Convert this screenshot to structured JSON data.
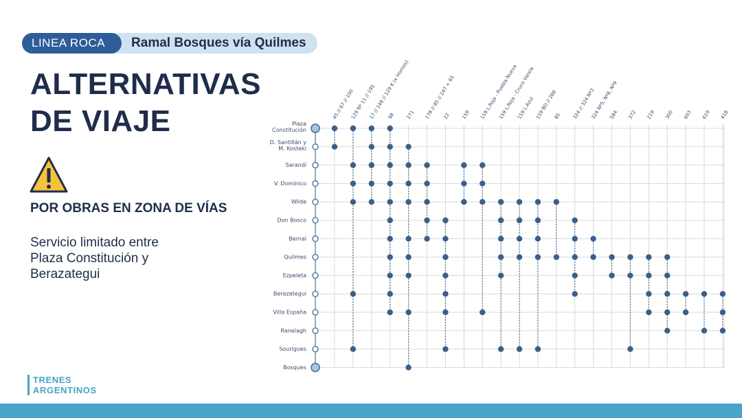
{
  "header": {
    "line": "LINEA ROCA",
    "branch": "Ramal Bosques vía Quilmes"
  },
  "title": {
    "line1": "ALTERNATIVAS",
    "line2": "DE VIAJE"
  },
  "warning": {
    "icon": "warning-triangle-icon",
    "heading": "POR OBRAS EN ZONA DE VÍAS"
  },
  "description": {
    "line1": "Servicio limitado entre",
    "line2": "Plaza Constitución y",
    "line3": "Berazategui"
  },
  "brand": {
    "line1": "TRENES",
    "line2": "ARGENTINOS"
  },
  "colors": {
    "dark_blue": "#1f2d4a",
    "line_blue": "#2e5d99",
    "light_blue": "#cfe2f1",
    "accent": "#4aa3c8",
    "dot": "#3b5f8a",
    "warning_yellow": "#f5c33b"
  },
  "chart_data": {
    "type": "table",
    "stations": [
      [
        "Plaza",
        "Constitución"
      ],
      [
        "D. Santillán y",
        "M. Kosteki"
      ],
      [
        "Sarandí"
      ],
      [
        "V. Domínico"
      ],
      [
        "Wilde"
      ],
      [
        "Don Bosco"
      ],
      [
        "Bernal"
      ],
      [
        "Quilmes"
      ],
      [
        "Ezpeleta"
      ],
      [
        "Berazategui"
      ],
      [
        "Villa España"
      ],
      [
        "Ranelagh"
      ],
      [
        "Sourigues"
      ],
      [
        "Bosques"
      ]
    ],
    "lines": [
      "45 // 67 // 100",
      "129 Nº 11 // 195",
      "17 // 148 // 129 K (x Hornos)",
      "98",
      "271",
      "178 // 85 // 247 + 65",
      "22",
      "159",
      "159 L.Roja - Puebla Nueva",
      "159 L.Roja - Cruce Varela",
      "159 L.Azul",
      "159 BO // 266",
      "85",
      "324 // 324 Nº3",
      "324 Nº5, Nº8, Nº9",
      "584",
      "372",
      "219",
      "300",
      "603",
      "619",
      "418"
    ],
    "stops": [
      [
        0,
        1
      ],
      [
        0,
        2,
        3,
        4,
        9,
        12
      ],
      [
        0,
        1,
        2,
        3,
        4
      ],
      [
        0,
        1,
        2,
        3,
        4,
        5,
        6,
        7,
        8,
        9,
        10
      ],
      [
        1,
        2,
        3,
        4,
        6,
        7,
        8,
        10,
        13
      ],
      [
        2,
        3,
        4,
        5,
        6
      ],
      [
        5,
        6,
        7,
        8,
        9,
        10,
        12
      ],
      [
        2,
        3,
        4
      ],
      [
        2,
        3,
        4,
        10
      ],
      [
        4,
        5,
        6,
        7,
        8,
        12
      ],
      [
        4,
        5,
        6,
        7,
        12
      ],
      [
        4,
        5,
        6,
        7,
        12
      ],
      [
        4,
        7
      ],
      [
        5,
        6,
        7,
        8,
        9
      ],
      [
        6,
        7
      ],
      [
        7,
        8
      ],
      [
        7,
        8,
        12
      ],
      [
        7,
        8,
        9,
        10
      ],
      [
        7,
        8,
        9,
        10,
        11
      ],
      [
        9,
        10
      ],
      [
        9,
        11
      ],
      [
        9,
        10,
        11
      ]
    ]
  }
}
